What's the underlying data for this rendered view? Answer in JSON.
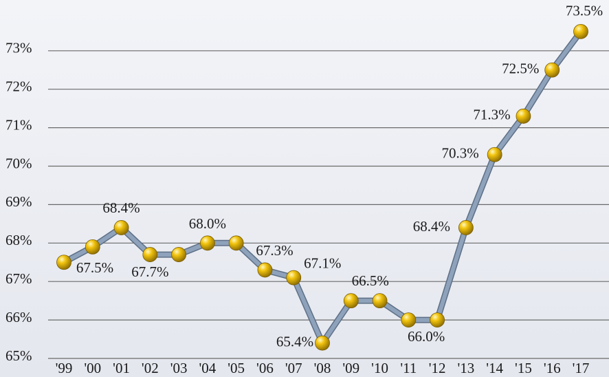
{
  "chart_data": {
    "type": "line",
    "categories": [
      "'99",
      "'00",
      "'01",
      "'02",
      "'03",
      "'04",
      "'05",
      "'06",
      "'07",
      "'08",
      "'09",
      "'10",
      "'11",
      "'12",
      "'13",
      "'14",
      "'15",
      "'16",
      "'17"
    ],
    "series": [
      {
        "color": "#8ea2bb",
        "values": [
          67.5,
          67.9,
          68.4,
          67.7,
          67.7,
          68.0,
          68.0,
          67.3,
          67.1,
          65.4,
          66.5,
          66.5,
          66.0,
          66.0,
          68.4,
          70.3,
          71.3,
          72.5,
          73.5
        ],
        "value_labels": [
          "67.5%",
          null,
          "68.4%",
          "67.7%",
          null,
          "68.0%",
          null,
          "67.3%",
          "67.1%",
          "65.4%",
          "66.5%",
          null,
          null,
          "66.0%",
          "68.4%",
          "70.3%",
          "71.3%",
          "72.5%",
          "73.5%"
        ]
      }
    ],
    "ylim": [
      65,
      74.3
    ],
    "yticks": [
      {
        "value": 65,
        "label": "65%"
      },
      {
        "value": 66,
        "label": "66%"
      },
      {
        "value": 67,
        "label": "67%"
      },
      {
        "value": 68,
        "label": "68%"
      },
      {
        "value": 69,
        "label": "69%"
      },
      {
        "value": 70,
        "label": "70%"
      },
      {
        "value": 71,
        "label": "71%"
      },
      {
        "value": 72,
        "label": "72%"
      },
      {
        "value": 73,
        "label": "73%"
      }
    ],
    "grid": true,
    "marker_color": "#f2c40f"
  }
}
